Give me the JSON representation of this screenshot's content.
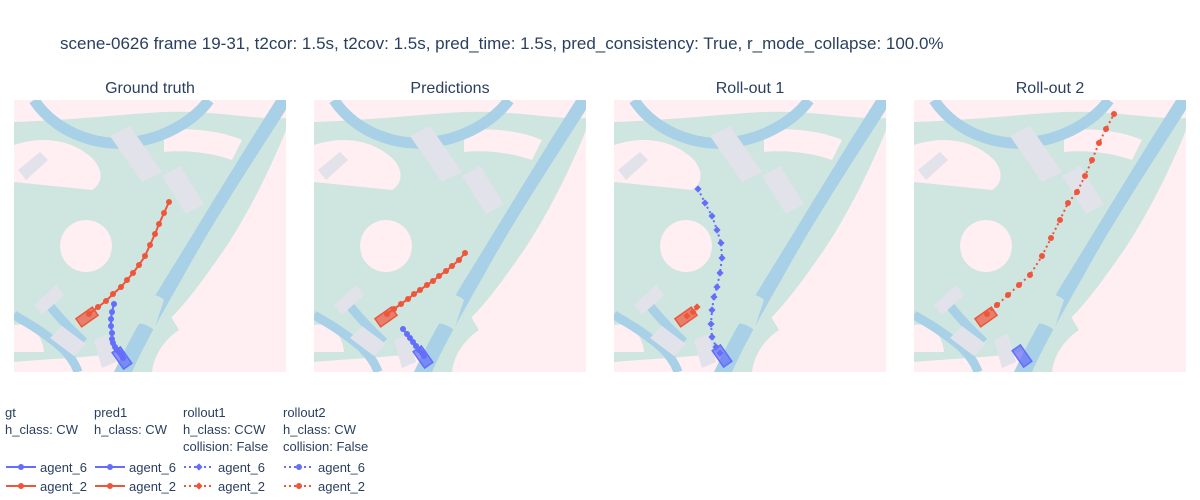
{
  "title": "scene-0626 frame 19-31, t2cor: 1.5s, t2cov: 1.5s, pred_time: 1.5s, pred_consistency: True, r_mode_collapse: 100.0%",
  "colors": {
    "agent_6": "#636efa",
    "agent_2": "#ef553b",
    "map_background": "#ffeef2",
    "drivable": "#cfe5e0",
    "water_lanes": "#a8d0e6",
    "crosswalk": "#e2e2ea"
  },
  "chart_data": [
    {
      "type": "scatter",
      "title": "Ground truth",
      "series": [
        {
          "name": "agent_6",
          "legendgroup": "gt",
          "mode": "lines+markers",
          "marker": "circle",
          "dash": "solid",
          "x": [
            114,
            112,
            111,
            111,
            112,
            112,
            113,
            115,
            117,
            119,
            121,
            122,
            123
          ],
          "y": [
            304,
            312,
            319,
            326,
            333,
            339,
            343,
            347,
            350,
            352,
            354,
            356,
            358
          ]
        },
        {
          "name": "agent_2",
          "legendgroup": "gt",
          "mode": "lines+markers",
          "marker": "circle",
          "dash": "solid",
          "x": [
            89,
            98,
            106,
            113,
            121,
            127,
            133,
            139,
            145,
            150,
            155,
            159,
            164,
            169
          ],
          "y": [
            314,
            307,
            301,
            294,
            287,
            280,
            273,
            265,
            256,
            245,
            234,
            224,
            213,
            202
          ]
        }
      ]
    },
    {
      "type": "scatter",
      "title": "Predictions",
      "series": [
        {
          "name": "agent_6",
          "legendgroup": "pred1",
          "mode": "lines+markers",
          "marker": "circle",
          "dash": "solid",
          "x": [
            403,
            407,
            410,
            413,
            416,
            419,
            422,
            424
          ],
          "y": [
            329,
            334,
            338,
            342,
            346,
            350,
            353,
            356
          ]
        },
        {
          "name": "agent_2",
          "legendgroup": "pred1",
          "mode": "lines+markers",
          "marker": "circle",
          "dash": "solid",
          "x": [
            387,
            394,
            401,
            408,
            414,
            420,
            427,
            433,
            439,
            446,
            452,
            459,
            465
          ],
          "y": [
            314,
            309,
            304,
            299,
            294,
            290,
            285,
            281,
            276,
            271,
            266,
            260,
            253
          ]
        }
      ]
    },
    {
      "type": "scatter",
      "title": "Roll-out 1",
      "series": [
        {
          "name": "agent_6",
          "legendgroup": "rollout1",
          "mode": "lines+markers",
          "marker": "diamond",
          "dash": "dot",
          "x": [
            698,
            705,
            712,
            717,
            721,
            722,
            720,
            717,
            714,
            712,
            711,
            712,
            716,
            720
          ],
          "y": [
            189,
            203,
            216,
            230,
            243,
            258,
            273,
            287,
            297,
            310,
            324,
            337,
            347,
            353
          ]
        },
        {
          "name": "agent_2",
          "legendgroup": "rollout1",
          "mode": "lines+markers",
          "marker": "diamond",
          "dash": "dot",
          "x": [
            687,
            693,
            697
          ],
          "y": [
            316,
            312,
            307
          ]
        }
      ]
    },
    {
      "type": "scatter",
      "title": "Roll-out 2",
      "series": [
        {
          "name": "agent_6",
          "legendgroup": "rollout2",
          "mode": "lines+markers",
          "marker": "circle",
          "dash": "dot",
          "x": [],
          "y": []
        },
        {
          "name": "agent_2",
          "legendgroup": "rollout2",
          "mode": "lines+markers",
          "marker": "circle",
          "dash": "dot",
          "x": [
            987,
            997,
            1008,
            1019,
            1030,
            1042,
            1051,
            1060,
            1068,
            1077,
            1085,
            1092,
            1099,
            1106,
            1114
          ],
          "y": [
            314,
            305,
            295,
            285,
            275,
            256,
            238,
            220,
            203,
            192,
            176,
            160,
            143,
            129,
            114
          ]
        }
      ]
    }
  ],
  "legend": {
    "groups": [
      {
        "id": "gt",
        "lines": [
          "gt",
          "h_class: CW"
        ],
        "entries": [
          {
            "name": "agent_6",
            "color_key": "agent_6",
            "marker": "circle",
            "dash": "solid"
          },
          {
            "name": "agent_2",
            "color_key": "agent_2",
            "marker": "circle",
            "dash": "solid"
          }
        ]
      },
      {
        "id": "pred1",
        "lines": [
          "pred1",
          "h_class: CW"
        ],
        "entries": [
          {
            "name": "agent_6",
            "color_key": "agent_6",
            "marker": "circle",
            "dash": "solid"
          },
          {
            "name": "agent_2",
            "color_key": "agent_2",
            "marker": "circle",
            "dash": "solid"
          }
        ]
      },
      {
        "id": "rollout1",
        "lines": [
          "rollout1",
          "h_class: CCW",
          "collision: False"
        ],
        "entries": [
          {
            "name": "agent_6",
            "color_key": "agent_6",
            "marker": "diamond",
            "dash": "dot"
          },
          {
            "name": "agent_2",
            "color_key": "agent_2",
            "marker": "diamond",
            "dash": "dot"
          }
        ]
      },
      {
        "id": "rollout2",
        "lines": [
          "rollout2",
          "h_class: CW",
          "collision: False"
        ],
        "entries": [
          {
            "name": "agent_6",
            "color_key": "agent_6",
            "marker": "circle",
            "dash": "dot"
          },
          {
            "name": "agent_2",
            "color_key": "agent_2",
            "marker": "circle",
            "dash": "dot"
          }
        ]
      }
    ]
  }
}
